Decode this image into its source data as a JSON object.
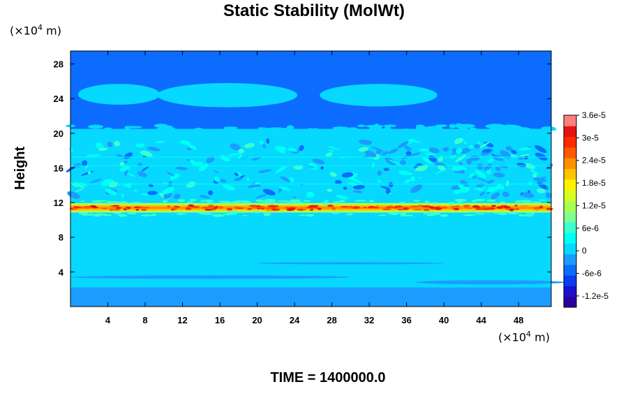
{
  "chart_data": {
    "type": "heatmap",
    "title": "Static Stability (MolWt)",
    "ylabel": "Height",
    "x_unit": "(×10",
    "x_unit_exp": "4",
    "x_unit_tail": " m)",
    "y_unit": "(×10",
    "y_unit_exp": "4",
    "y_unit_tail": " m)",
    "xlim": [
      0,
      51.5
    ],
    "ylim": [
      0,
      29.5
    ],
    "x_ticks": [
      4,
      8,
      12,
      16,
      20,
      24,
      28,
      32,
      36,
      40,
      44,
      48
    ],
    "x_tick_labels": [
      "4",
      "8",
      "12",
      "16",
      "20",
      "24",
      "28",
      "32",
      "36",
      "40",
      "44",
      "48"
    ],
    "y_ticks": [
      4,
      8,
      12,
      16,
      20,
      24,
      28
    ],
    "y_tick_labels": [
      "4",
      "8",
      "12",
      "16",
      "20",
      "24",
      "28"
    ],
    "colorbar": {
      "min": -1.5e-05,
      "max": 3.6e-05,
      "tick_values": [
        3.6e-05,
        3e-05,
        2.4e-05,
        1.8e-05,
        1.2e-05,
        6e-06,
        0,
        -6e-06,
        -1.2e-05
      ],
      "tick_labels": [
        "3.6e-5",
        "3e-5",
        "2.4e-5",
        "1.8e-5",
        "1.2e-5",
        "6e-6",
        "0",
        "-6e-6",
        "-1.2e-5"
      ],
      "colors": [
        "#2b00a0",
        "#1c10ce",
        "#0a3cf0",
        "#0b6cff",
        "#1c9cff",
        "#06d8ff",
        "#00fff6",
        "#3cffcf",
        "#7fff91",
        "#a9ff4f",
        "#d8ff22",
        "#fff200",
        "#ffc400",
        "#ff9000",
        "#ff5a00",
        "#ff2a00",
        "#e61313",
        "#ff7f7f"
      ]
    },
    "fields": {
      "upper_layer": {
        "y_range": [
          20.5,
          29.5
        ],
        "value": -4e-06
      },
      "mid_layer": {
        "y_range": [
          11.8,
          20.5
        ],
        "value": 1e-06
      },
      "tropopause_band": {
        "y_center": 11.4,
        "peak_value": 3.3e-05
      },
      "lower_layer": {
        "y_range": [
          0,
          11.0
        ],
        "value": 1e-06
      },
      "surface_layer": {
        "y_range": [
          0,
          2.2
        ],
        "value": -3e-06
      },
      "upper_ellipses": [
        {
          "x_center": 5.2,
          "y_center": 24.5,
          "x_radius": 4.4,
          "y_radius": 1.2
        },
        {
          "x_center": 16.8,
          "y_center": 24.4,
          "x_radius": 7.5,
          "y_radius": 1.4
        },
        {
          "x_center": 33.0,
          "y_center": 24.4,
          "x_radius": 6.3,
          "y_radius": 1.3
        }
      ]
    },
    "time_label": "TIME = 1400000.0"
  }
}
